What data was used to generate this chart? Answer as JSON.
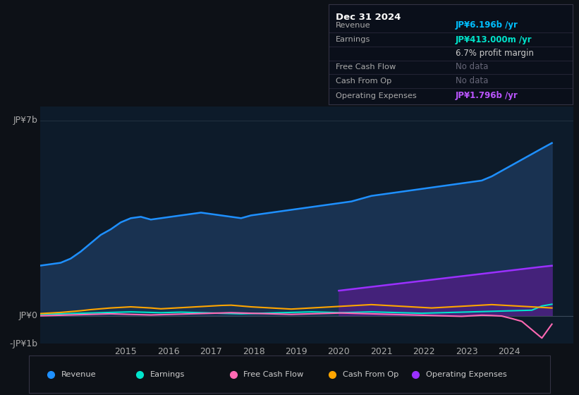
{
  "background_color": "#0d1117",
  "chart_bg": "#0d1b2a",
  "title": "Dec 31 2024",
  "ylabel_top": "JP¥7b",
  "ylabel_zero": "JP¥0",
  "ylabel_neg": "-JP¥1b",
  "ylim": [
    -1.0,
    7.5
  ],
  "xlim": [
    2013.0,
    2025.5
  ],
  "xticks": [
    2015,
    2016,
    2017,
    2018,
    2019,
    2020,
    2021,
    2022,
    2023,
    2024
  ],
  "revenue_color": "#1e90ff",
  "earnings_color": "#00e5cc",
  "fcf_color": "#ff69b4",
  "cashfromop_color": "#ffa500",
  "opex_color": "#9b30ff",
  "revenue_fill": "#1e3a5f",
  "opex_fill": "#4b2080",
  "revenue": [
    1.8,
    1.85,
    1.9,
    2.05,
    2.3,
    2.6,
    2.9,
    3.1,
    3.35,
    3.5,
    3.55,
    3.45,
    3.5,
    3.55,
    3.6,
    3.65,
    3.7,
    3.65,
    3.6,
    3.55,
    3.5,
    3.6,
    3.65,
    3.7,
    3.75,
    3.8,
    3.85,
    3.9,
    3.95,
    4.0,
    4.05,
    4.1,
    4.2,
    4.3,
    4.35,
    4.4,
    4.45,
    4.5,
    4.55,
    4.6,
    4.65,
    4.7,
    4.75,
    4.8,
    4.85,
    5.0,
    5.2,
    5.4,
    5.6,
    5.8,
    6.0,
    6.196
  ],
  "earnings": [
    0.05,
    0.06,
    0.07,
    0.08,
    0.09,
    0.1,
    0.11,
    0.12,
    0.13,
    0.14,
    0.13,
    0.12,
    0.11,
    0.12,
    0.13,
    0.12,
    0.11,
    0.1,
    0.09,
    0.08,
    0.07,
    0.08,
    0.09,
    0.1,
    0.11,
    0.12,
    0.13,
    0.14,
    0.13,
    0.12,
    0.11,
    0.12,
    0.13,
    0.14,
    0.13,
    0.12,
    0.11,
    0.1,
    0.09,
    0.1,
    0.11,
    0.12,
    0.13,
    0.14,
    0.15,
    0.16,
    0.17,
    0.18,
    0.19,
    0.2,
    0.35,
    0.413
  ],
  "fcf": [
    0.0,
    0.01,
    0.02,
    0.03,
    0.04,
    0.05,
    0.06,
    0.07,
    0.06,
    0.05,
    0.04,
    0.03,
    0.04,
    0.05,
    0.06,
    0.07,
    0.08,
    0.09,
    0.1,
    0.11,
    0.1,
    0.09,
    0.08,
    0.07,
    0.06,
    0.05,
    0.06,
    0.07,
    0.08,
    0.09,
    0.1,
    0.09,
    0.08,
    0.07,
    0.06,
    0.05,
    0.04,
    0.03,
    0.02,
    0.01,
    0.0,
    -0.01,
    -0.02,
    0.0,
    0.02,
    0.01,
    -0.01,
    -0.1,
    -0.2,
    -0.5,
    -0.8,
    -0.3
  ],
  "cashfromop": [
    0.08,
    0.1,
    0.12,
    0.15,
    0.18,
    0.22,
    0.25,
    0.28,
    0.3,
    0.32,
    0.3,
    0.28,
    0.25,
    0.27,
    0.29,
    0.31,
    0.33,
    0.35,
    0.37,
    0.38,
    0.35,
    0.32,
    0.3,
    0.28,
    0.26,
    0.24,
    0.26,
    0.28,
    0.3,
    0.32,
    0.34,
    0.36,
    0.38,
    0.4,
    0.38,
    0.36,
    0.34,
    0.32,
    0.3,
    0.28,
    0.3,
    0.32,
    0.34,
    0.36,
    0.38,
    0.4,
    0.38,
    0.36,
    0.34,
    0.32,
    0.3,
    0.28
  ],
  "opex": [
    0.9,
    0.95,
    1.0,
    1.05,
    1.1,
    1.15,
    1.2,
    1.25,
    1.3,
    1.35,
    1.4,
    1.45,
    1.5,
    1.55,
    1.6,
    1.65,
    1.7,
    1.75,
    1.796
  ],
  "n_points": 52,
  "opex_n_points": 19,
  "start_year": 2013.0,
  "end_year": 2025.0,
  "info_rows": [
    {
      "label": "Revenue",
      "value": "JP¥6.196b /yr",
      "value_color": "#00bfff",
      "label_color": "#aaaaaa"
    },
    {
      "label": "Earnings",
      "value": "JP¥413.000m /yr",
      "value_color": "#00e5cc",
      "label_color": "#aaaaaa"
    },
    {
      "label": "",
      "value": "6.7% profit margin",
      "value_color": "#cccccc",
      "label_color": "#aaaaaa"
    },
    {
      "label": "Free Cash Flow",
      "value": "No data",
      "value_color": "#666677",
      "label_color": "#aaaaaa"
    },
    {
      "label": "Cash From Op",
      "value": "No data",
      "value_color": "#666677",
      "label_color": "#aaaaaa"
    },
    {
      "label": "Operating Expenses",
      "value": "JP¥1.796b /yr",
      "value_color": "#bb55ff",
      "label_color": "#aaaaaa"
    }
  ],
  "legend_items": [
    {
      "label": "Revenue",
      "color": "#1e90ff"
    },
    {
      "label": "Earnings",
      "color": "#00e5cc"
    },
    {
      "label": "Free Cash Flow",
      "color": "#ff69b4"
    },
    {
      "label": "Cash From Op",
      "color": "#ffa500"
    },
    {
      "label": "Operating Expenses",
      "color": "#9b30ff"
    }
  ]
}
